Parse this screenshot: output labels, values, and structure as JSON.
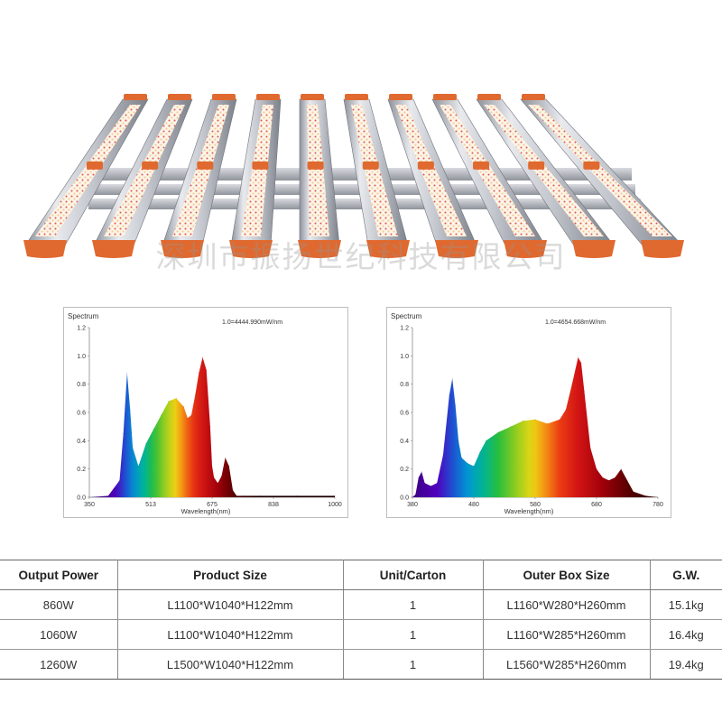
{
  "product_image": {
    "bar_count": 10,
    "body_color": "#b9bcc4",
    "cap_color": "#e0692f",
    "watermark_text": "深圳市振扬世纪科技有限公司"
  },
  "chart_data": [
    {
      "type": "area",
      "title": "Spectrum",
      "annotation": "1.0=4444.990mW/nm",
      "xlabel": "Wavelength(nm)",
      "ylabel": "",
      "xlim": [
        350,
        1000
      ],
      "ylim": [
        0,
        1.2
      ],
      "x_ticks": [
        "350",
        "513",
        "675",
        "838",
        "1000"
      ],
      "y_ticks": [
        "0.0",
        "0.2",
        "0.4",
        "0.6",
        "0.8",
        "1.0",
        "1.2"
      ],
      "x": [
        350,
        400,
        430,
        440,
        450,
        458,
        465,
        480,
        500,
        520,
        540,
        560,
        580,
        600,
        610,
        620,
        630,
        640,
        650,
        660,
        670,
        675,
        680,
        690,
        700,
        710,
        720,
        730,
        740,
        760,
        800,
        900,
        1000
      ],
      "values": [
        0,
        0.01,
        0.12,
        0.45,
        0.88,
        0.62,
        0.35,
        0.22,
        0.38,
        0.48,
        0.58,
        0.68,
        0.7,
        0.64,
        0.56,
        0.58,
        0.72,
        0.88,
        0.99,
        0.9,
        0.5,
        0.22,
        0.14,
        0.1,
        0.15,
        0.28,
        0.22,
        0.05,
        0.01,
        0.01,
        0.01,
        0.01,
        0.01
      ]
    },
    {
      "type": "area",
      "title": "Spectrum",
      "annotation": "1.0=4654.668mW/nm",
      "xlabel": "Wavelength(nm)",
      "ylabel": "",
      "xlim": [
        380,
        780
      ],
      "ylim": [
        0,
        1.2
      ],
      "x_ticks": [
        "380",
        "480",
        "580",
        "680",
        "780"
      ],
      "y_ticks": [
        "0.0",
        "0.2",
        "0.4",
        "0.6",
        "0.8",
        "1.0",
        "1.2"
      ],
      "x": [
        380,
        385,
        390,
        395,
        400,
        410,
        420,
        430,
        440,
        445,
        450,
        455,
        460,
        470,
        480,
        490,
        500,
        520,
        540,
        560,
        580,
        600,
        620,
        630,
        640,
        650,
        655,
        660,
        670,
        680,
        690,
        700,
        710,
        720,
        730,
        740,
        760,
        780
      ],
      "values": [
        0,
        0.02,
        0.14,
        0.18,
        0.1,
        0.08,
        0.1,
        0.3,
        0.72,
        0.84,
        0.65,
        0.4,
        0.28,
        0.24,
        0.22,
        0.32,
        0.4,
        0.46,
        0.5,
        0.54,
        0.55,
        0.52,
        0.55,
        0.62,
        0.8,
        0.99,
        0.95,
        0.75,
        0.35,
        0.2,
        0.14,
        0.12,
        0.14,
        0.2,
        0.12,
        0.04,
        0.01,
        0
      ]
    }
  ],
  "table": {
    "headers": [
      "Output Power",
      "Product Size",
      "Unit/Carton",
      "Outer Box Size",
      "G.W."
    ],
    "rows": [
      [
        "860W",
        "L1100*W1040*H122mm",
        "1",
        "L1160*W280*H260mm",
        "15.1kg"
      ],
      [
        "1060W",
        "L1100*W1040*H122mm",
        "1",
        "L1160*W285*H260mm",
        "16.4kg"
      ],
      [
        "1260W",
        "L1500*W1040*H122mm",
        "1",
        "L1560*W285*H260mm",
        "19.4kg"
      ]
    ]
  }
}
